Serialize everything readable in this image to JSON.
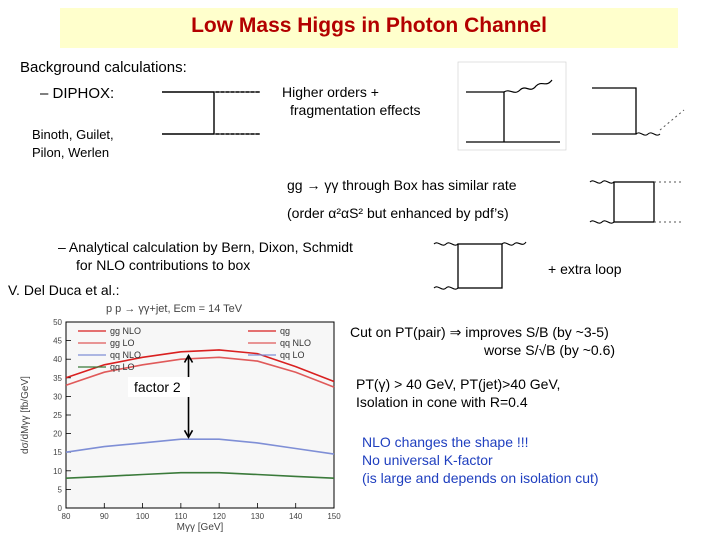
{
  "slide": {
    "title": "Low Mass Higgs in Photon Channel",
    "background_calc": "Background calculations:",
    "diphox": "–  DIPHOX:",
    "higher_orders_1": "Higher orders +",
    "higher_orders_2": "fragmentation effects",
    "binoth_1": "Binoth, Guilet,",
    "binoth_2": "Pilon, Werlen",
    "box_rate": "gg → γγ  through Box has similar rate",
    "order": "(order α²αS² but enhanced by  pdf’s)",
    "analytic_1": "–  Analytical calculation by Bern, Dixon, Schmidt",
    "analytic_2": "for NLO contributions to box",
    "extra_loop": "+ extra loop",
    "del_duca": "V. Del Duca et al.:",
    "cut": "Cut on PT(pair)  ⇒ improves S/B (by ~3-5)",
    "worse": "worse S/√B  (by ~0.6)",
    "pt_cuts_1": "PT(γ) > 40 GeV, PT(jet)>40 GeV,",
    "pt_cuts_2": "Isolation in cone with R=0.4",
    "nlo_1": "NLO changes the shape !!!",
    "nlo_2": "No universal K-factor",
    "nlo_3": "(is large and depends on isolation cut)"
  },
  "chart_data": {
    "type": "line",
    "title": "p p → γγ+jet, Ecm = 14 TeV",
    "xlabel": "Mγγ [GeV]",
    "ylabel": "dσ/dMγγ [fb/GeV]",
    "xlim": [
      80,
      150
    ],
    "ylim": [
      0,
      50
    ],
    "x_ticks": [
      "80",
      "90",
      "100",
      "110",
      "120",
      "130",
      "140",
      "150"
    ],
    "y_ticks": [
      "0",
      "5",
      "10",
      "15",
      "20",
      "25",
      "30",
      "35",
      "40",
      "45",
      "50"
    ],
    "annotation": "factor 2",
    "legend_left": [
      "gg NLO",
      "gg LO",
      "qq NLO",
      "qq LO"
    ],
    "legend_right": [
      "qg",
      "qq NLO",
      "qq LO"
    ],
    "x": [
      80,
      90,
      100,
      110,
      120,
      130,
      140,
      150
    ],
    "series": [
      {
        "name": "gg NLO",
        "color": "#d92020",
        "values": [
          35,
          38.5,
          40.5,
          42,
          42.5,
          41.5,
          38,
          34
        ]
      },
      {
        "name": "gg LO",
        "color": "#e05a5a",
        "values": [
          33,
          36.5,
          38.5,
          40,
          40.5,
          39.5,
          36.5,
          32.5
        ]
      },
      {
        "name": "qq NLO",
        "color": "#7f8fd6",
        "values": [
          15,
          16.5,
          17.5,
          18.5,
          18.5,
          17.5,
          16,
          14.5
        ]
      },
      {
        "name": "qq LO",
        "color": "#3a7a3a",
        "values": [
          8,
          8.5,
          9,
          9.5,
          9.5,
          9,
          8.5,
          8
        ]
      }
    ]
  }
}
